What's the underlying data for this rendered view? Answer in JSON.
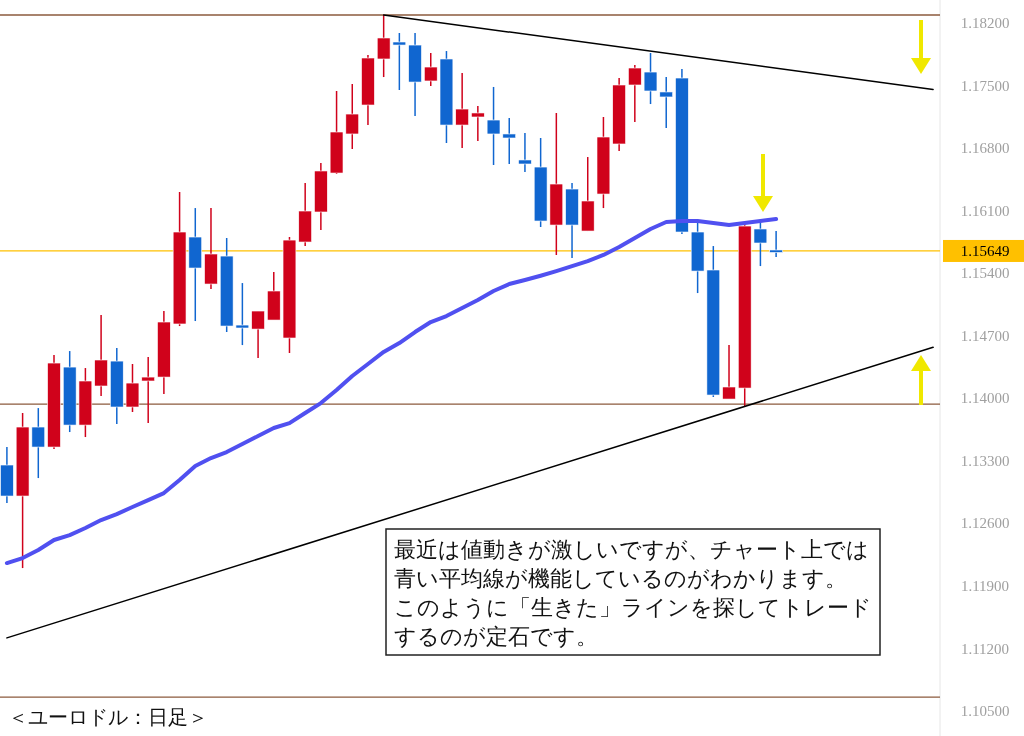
{
  "chart_data": {
    "type": "candlestick",
    "categories": [
      null,
      null,
      null,
      null,
      null,
      null,
      null,
      null,
      null,
      null,
      null,
      null,
      null,
      null,
      null,
      null,
      null,
      null,
      null,
      null,
      null,
      null,
      null,
      null,
      null,
      null,
      null,
      null,
      null,
      null,
      null,
      null,
      null,
      null,
      null,
      null,
      null,
      null,
      null,
      null,
      null,
      null,
      null,
      null,
      null,
      null,
      null,
      null,
      null,
      null,
      null,
      null,
      null,
      null,
      null,
      null,
      null,
      null,
      null,
      null
    ],
    "ohlc": [
      [
        1.13254,
        1.13455,
        1.12828,
        1.12907
      ],
      [
        1.12907,
        1.13836,
        1.12101,
        1.13679
      ],
      [
        1.13679,
        1.13891,
        1.13108,
        1.13455
      ],
      [
        1.13455,
        1.14485,
        1.13433,
        1.14395
      ],
      [
        1.1435,
        1.14529,
        1.13623,
        1.13701
      ],
      [
        1.13701,
        1.14339,
        1.13567,
        1.14194
      ],
      [
        1.14138,
        1.14932,
        1.14026,
        1.14429
      ],
      [
        1.14417,
        1.14563,
        1.13712,
        1.13903
      ],
      [
        1.13903,
        1.14384,
        1.13847,
        1.14171
      ],
      [
        1.14194,
        1.14462,
        1.13724,
        1.14238
      ],
      [
        1.14238,
        1.14977,
        1.14048,
        1.14854
      ],
      [
        1.14832,
        1.16309,
        1.14809,
        1.15861
      ],
      [
        1.15805,
        1.16129,
        1.14865,
        1.15458
      ],
      [
        1.15279,
        1.16129,
        1.15223,
        1.15615
      ],
      [
        1.15592,
        1.15794,
        1.14742,
        1.14809
      ],
      [
        1.1482,
        1.1529,
        1.14596,
        1.14787
      ],
      [
        1.14775,
        1.14977,
        1.14451,
        1.14977
      ],
      [
        1.14876,
        1.15413,
        1.14876,
        1.15201
      ],
      [
        1.14675,
        1.15805,
        1.14507,
        1.15771
      ],
      [
        1.15749,
        1.16409,
        1.15704,
        1.16096
      ],
      [
        1.16085,
        1.16633,
        1.15883,
        1.16544
      ],
      [
        1.16521,
        1.17439,
        1.1651,
        1.1698
      ],
      [
        1.16958,
        1.17517,
        1.1679,
        1.17181
      ],
      [
        1.17282,
        1.17842,
        1.17058,
        1.17808
      ],
      [
        1.17797,
        1.18289,
        1.17595,
        1.18032
      ],
      [
        1.17987,
        1.18088,
        1.1745,
        1.17953
      ],
      [
        1.17953,
        1.18088,
        1.17159,
        1.17539
      ],
      [
        1.17551,
        1.17864,
        1.17495,
        1.17707
      ],
      [
        1.17797,
        1.17886,
        1.16857,
        1.17058
      ],
      [
        1.17058,
        1.1764,
        1.16801,
        1.17237
      ],
      [
        1.17148,
        1.17271,
        1.16879,
        1.17193
      ],
      [
        1.17114,
        1.17484,
        1.16611,
        1.16958
      ],
      [
        1.16958,
        1.17137,
        1.16622,
        1.16913
      ],
      [
        1.16667,
        1.16969,
        1.16532,
        1.16622
      ],
      [
        1.16588,
        1.16913,
        1.15917,
        1.15984
      ],
      [
        1.15939,
        1.17193,
        1.15604,
        1.16398
      ],
      [
        1.16342,
        1.16409,
        1.1557,
        1.15939
      ],
      [
        1.15872,
        1.167,
        1.15872,
        1.16208
      ],
      [
        1.16286,
        1.17148,
        1.16129,
        1.16924
      ],
      [
        1.16846,
        1.17584,
        1.16767,
        1.17506
      ],
      [
        1.17506,
        1.1773,
        1.17092,
        1.17696
      ],
      [
        1.17651,
        1.17864,
        1.17293,
        1.17439
      ],
      [
        1.17428,
        1.17595,
        1.17025,
        1.17372
      ],
      [
        1.17584,
        1.17685,
        1.15839,
        1.15861
      ],
      [
        1.15861,
        1.15962,
        1.15178,
        1.15424
      ],
      [
        1.15436,
        1.15704,
        1.14015,
        1.14037
      ],
      [
        1.13992,
        1.14596,
        1.13992,
        1.14127
      ],
      [
        1.14115,
        1.15962,
        1.13903,
        1.15928
      ],
      [
        1.15895,
        1.15962,
        1.1548,
        1.15738
      ],
      [
        1.1566,
        1.15872,
        1.15581,
        1.15649
      ],
      null,
      null,
      null,
      null,
      null,
      null,
      null,
      null,
      null,
      null
    ],
    "colors": [
      "#1066d0",
      "#d0021b",
      "#1066d0",
      "#d0021b",
      "#1066d0",
      "#d0021b",
      "#d0021b",
      "#1066d0",
      "#d0021b",
      "#d0021b",
      "#d0021b",
      "#d0021b",
      "#1066d0",
      "#d0021b",
      "#1066d0",
      "#1066d0",
      "#d0021b",
      "#d0021b",
      "#d0021b",
      "#d0021b",
      "#d0021b",
      "#d0021b",
      "#d0021b",
      "#d0021b",
      "#d0021b",
      "#1066d0",
      "#1066d0",
      "#d0021b",
      "#1066d0",
      "#d0021b",
      "#d0021b",
      "#1066d0",
      "#1066d0",
      "#1066d0",
      "#1066d0",
      "#d0021b",
      "#1066d0",
      "#d0021b",
      "#d0021b",
      "#d0021b",
      "#d0021b",
      "#1066d0",
      "#1066d0",
      "#1066d0",
      "#1066d0",
      "#1066d0",
      "#d0021b",
      "#d0021b",
      "#1066d0",
      "#1066d0",
      null,
      null,
      null,
      null,
      null,
      null,
      null,
      null,
      null,
      null
    ],
    "series": [
      {
        "type": "line",
        "color": "#5050f0",
        "values": [
          1.12157,
          1.12213,
          1.12303,
          1.12415,
          1.1247,
          1.12549,
          1.12638,
          1.12705,
          1.12784,
          1.12862,
          1.1294,
          1.13086,
          1.13242,
          1.13332,
          1.13399,
          1.13489,
          1.13578,
          1.13668,
          1.13723,
          1.13836,
          1.13947,
          1.14093,
          1.1425,
          1.14384,
          1.14519,
          1.14619,
          1.14742,
          1.14854,
          1.14921,
          1.15011,
          1.151,
          1.15201,
          1.15279,
          1.15324,
          1.15372,
          1.15424,
          1.1548,
          1.15536,
          1.15604,
          1.15693,
          1.15794,
          1.15895,
          1.15973,
          1.15984,
          1.15984,
          1.15962,
          1.15939,
          1.15962,
          1.15984,
          1.16006,
          null,
          null,
          null,
          null,
          null,
          null,
          null,
          null,
          null,
          null
        ]
      },
      {
        "type": "line",
        "color": "#000000",
        "values": [
          null,
          null,
          null,
          null,
          null,
          null,
          null,
          null,
          null,
          null,
          null,
          null,
          null,
          null,
          null,
          null,
          null,
          null,
          null,
          null,
          null,
          null,
          null,
          null,
          1.18289,
          null,
          null,
          null,
          null,
          null,
          null,
          null,
          null,
          null,
          null,
          null,
          null,
          null,
          null,
          null,
          null,
          null,
          null,
          null,
          null,
          null,
          null,
          null,
          null,
          null,
          null,
          null,
          null,
          null,
          null,
          null,
          null,
          null,
          null,
          1.17456
        ]
      },
      {
        "type": "line",
        "color": "#000000",
        "values": [
          1.1132,
          null,
          null,
          null,
          null,
          null,
          null,
          null,
          null,
          null,
          null,
          null,
          null,
          null,
          null,
          null,
          null,
          null,
          null,
          null,
          null,
          null,
          null,
          null,
          null,
          null,
          null,
          null,
          null,
          null,
          null,
          null,
          null,
          null,
          null,
          null,
          null,
          null,
          null,
          null,
          null,
          null,
          null,
          null,
          null,
          null,
          null,
          null,
          null,
          null,
          null,
          null,
          null,
          null,
          null,
          null,
          null,
          null,
          null,
          1.14571
        ]
      }
    ],
    "yticks": [
      {
        "value": 1.182,
        "label": "1.18200"
      },
      {
        "value": 1.175,
        "label": "1.17500"
      },
      {
        "value": 1.168,
        "label": "1.16800"
      },
      {
        "value": 1.161,
        "label": "1.16100"
      },
      {
        "value": 1.154,
        "label": "1.15400"
      },
      {
        "value": 1.147,
        "label": "1.14700"
      },
      {
        "value": 1.14,
        "label": "1.14000"
      },
      {
        "value": 1.133,
        "label": "1.13300"
      },
      {
        "value": 1.126,
        "label": "1.12600"
      },
      {
        "value": 1.119,
        "label": "1.11900"
      },
      {
        "value": 1.112,
        "label": "1.11200"
      },
      {
        "value": 1.105,
        "label": "1.10500"
      }
    ],
    "ylim": [
      1.10222,
      1.18457
    ],
    "tick_labels": "y",
    "ref_lines": [
      {
        "axis": "y",
        "value": 1.18289,
        "color": "#8b5a3c"
      },
      {
        "axis": "y",
        "value": 1.13936,
        "color": "#8b5a3c"
      },
      {
        "axis": "y",
        "value": 1.10658,
        "color": "#8b5a3c"
      },
      {
        "axis": "y",
        "value": 1.15649,
        "label": "1.15649",
        "color": "#ffc000"
      }
    ],
    "annotations": [
      "最近は値動きが激しいですが、チャート上では青い平均線が機能しているのがわかります。このように「生きた」ラインを探してトレードするのが定石です。",
      "＜ユーロドル：日足＞"
    ]
  }
}
